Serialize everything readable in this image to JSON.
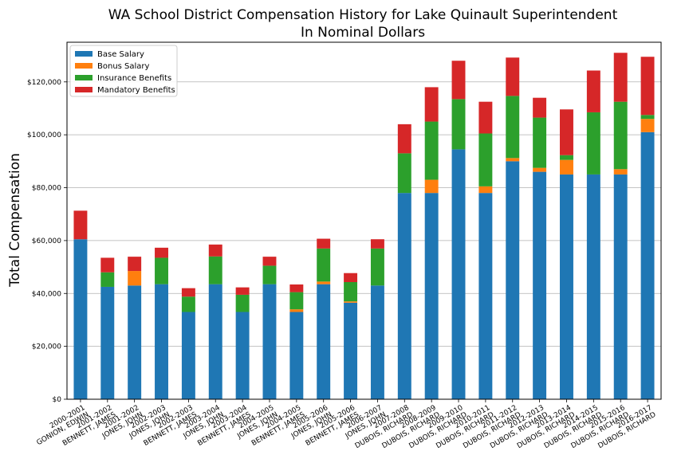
{
  "chart_data": {
    "type": "bar",
    "stacked": true,
    "title": "WA School District Compensation History for Lake Quinault Superintendent",
    "subtitle": "In Nominal Dollars",
    "xlabel": "",
    "ylabel": "Total Compensation",
    "ylim": [
      0,
      135000
    ],
    "yticks": [
      0,
      20000,
      40000,
      60000,
      80000,
      100000,
      120000
    ],
    "ytick_labels": [
      "$0",
      "$20,000",
      "$40,000",
      "$60,000",
      "$80,000",
      "$100,000",
      "$120,000"
    ],
    "grid": "horizontal",
    "legend_position": "top-left",
    "categories": [
      [
        "2000-2001",
        "GONION, EDWIN"
      ],
      [
        "2001-2002",
        "BENNETT, JAMES"
      ],
      [
        "2001-2002",
        "JONES, JOHN"
      ],
      [
        "2002-2003",
        "JONES, JOHN"
      ],
      [
        "2002-2003",
        "BENNETT, JAMES"
      ],
      [
        "2003-2004",
        "JONES, JOHN"
      ],
      [
        "2003-2004",
        "BENNETT, JAMES"
      ],
      [
        "2004-2005",
        "JONES, JOHN"
      ],
      [
        "2004-2005",
        "BENNETT, JAMES"
      ],
      [
        "2005-2006",
        "JONES, JOHN"
      ],
      [
        "2005-2006",
        "BENNETT, JAMES"
      ],
      [
        "2006-2007",
        "JONES, JOHN"
      ],
      [
        "2007-2008",
        "DUBOIS, RICHARD"
      ],
      [
        "2008-2009",
        "DUBOIS, RICHARD"
      ],
      [
        "2009-2010",
        "DUBOIS, RICHARD"
      ],
      [
        "2010-2011",
        "DUBOIS, RICHARD"
      ],
      [
        "2011-2012",
        "DUBOIS, RICHARD"
      ],
      [
        "2012-2013",
        "DUBOIS, RICHARD"
      ],
      [
        "2013-2014",
        "DUBOIS, RICHARD"
      ],
      [
        "2014-2015",
        "DUBOIS, RICHARD"
      ],
      [
        "2015-2016",
        "DUBOIS, RICHARD"
      ],
      [
        "2016-2017",
        "DUBOIS, RICHARD"
      ]
    ],
    "series": [
      {
        "name": "Base Salary",
        "color": "#1f77b4",
        "values": [
          60500,
          42500,
          43000,
          43500,
          33000,
          43500,
          33000,
          43500,
          33000,
          43500,
          36500,
          43000,
          78000,
          78000,
          94500,
          78000,
          90000,
          86000,
          85000,
          85000,
          85000,
          101000
        ]
      },
      {
        "name": "Bonus Salary",
        "color": "#ff7f0e",
        "values": [
          0,
          0,
          5500,
          0,
          0,
          0,
          0,
          0,
          1000,
          1000,
          500,
          0,
          0,
          5000,
          0,
          2500,
          1200,
          1500,
          5500,
          0,
          2000,
          5000
        ]
      },
      {
        "name": "Insurance Benefits",
        "color": "#2ca02c",
        "values": [
          0,
          5500,
          0,
          10000,
          5800,
          10500,
          6500,
          7000,
          6500,
          12500,
          7300,
          14000,
          15000,
          22000,
          19000,
          20000,
          23500,
          19000,
          1800,
          23500,
          25500,
          1500
        ]
      },
      {
        "name": "Mandatory Benefits",
        "color": "#d62728",
        "values": [
          10800,
          5500,
          5400,
          3800,
          3200,
          4500,
          2800,
          3400,
          2900,
          3700,
          3400,
          3500,
          11000,
          13000,
          14500,
          12000,
          14500,
          7500,
          17300,
          15800,
          18500,
          22000
        ]
      }
    ]
  }
}
